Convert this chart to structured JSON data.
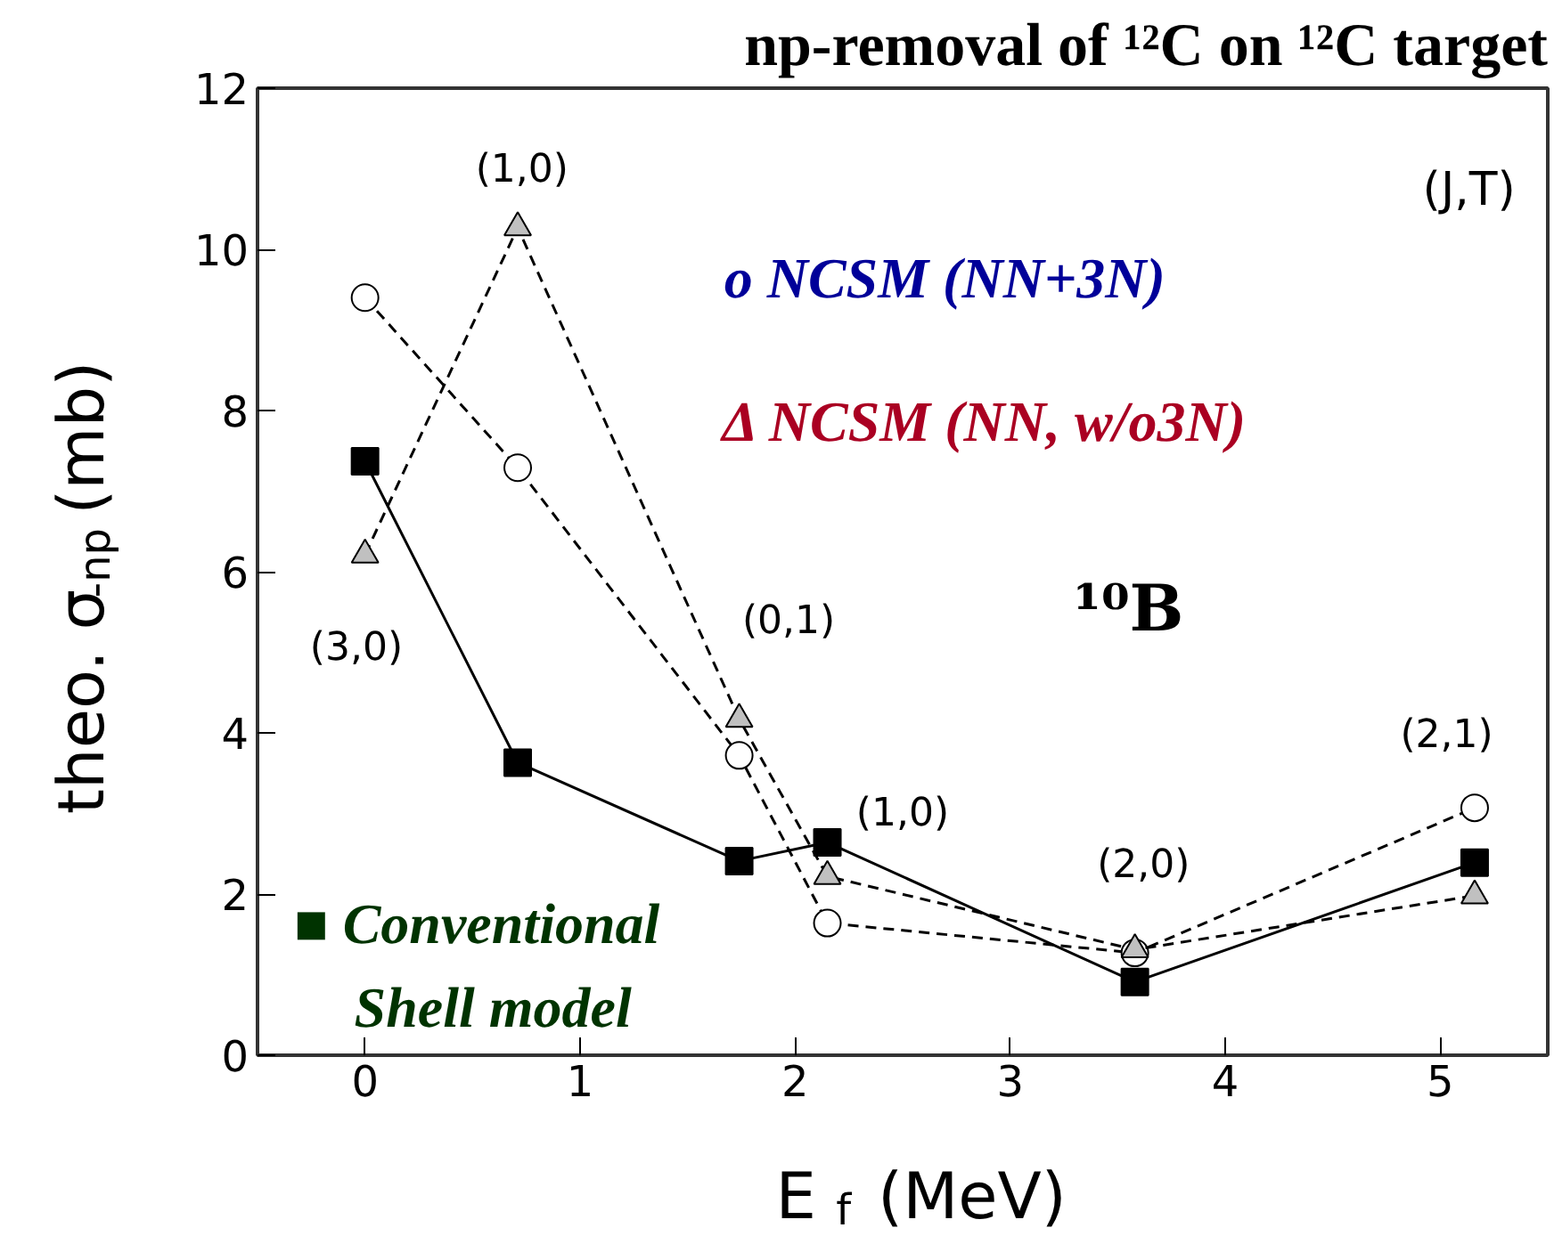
{
  "chart_data": {
    "type": "line",
    "title": "np-removal of ¹²C on ¹²C target",
    "xlabel": "E$_{f}$ (MeV)",
    "ylabel": "theo. σ$_{-np}$ (mb)",
    "xlim": [
      -0.5,
      5.5
    ],
    "ylim": [
      0,
      12
    ],
    "xticks": [
      0,
      1,
      2,
      3,
      4,
      5
    ],
    "yticks": [
      0,
      2,
      4,
      6,
      8,
      10,
      12
    ],
    "grid": false,
    "series": [
      {
        "x": [
          0,
          0.71,
          1.74,
          2.15,
          3.58,
          5.16
        ],
        "values": [
          7.37,
          3.63,
          2.41,
          2.64,
          0.91,
          2.39
        ],
        "color": "#000000",
        "marker": "square",
        "line_style": "solid"
      },
      {
        "x": [
          0,
          0.71,
          1.74,
          2.15,
          3.58,
          5.16
        ],
        "values": [
          9.4,
          7.29,
          3.72,
          1.64,
          1.27,
          3.07
        ],
        "color": "#ffffff",
        "marker": "circle",
        "line_style": "dashed"
      },
      {
        "x": [
          0,
          0.71,
          1.74,
          2.15,
          3.58,
          5.16
        ],
        "values": [
          6.21,
          10.27,
          4.17,
          2.22,
          1.31,
          1.98
        ],
        "color": "#c0c0c0",
        "marker": "triangle",
        "line_style": "dashed"
      }
    ],
    "annotations": [
      "(3,0)",
      "(1,0)",
      "(0,1)",
      "(1,0)",
      "(2,0)",
      "(2,1)",
      "(J,T)",
      "o NCSM (NN+3N)",
      "Δ NCSM (NN, w/o3N)",
      "¹⁰B",
      "■ Conventional",
      "Shell model"
    ]
  }
}
